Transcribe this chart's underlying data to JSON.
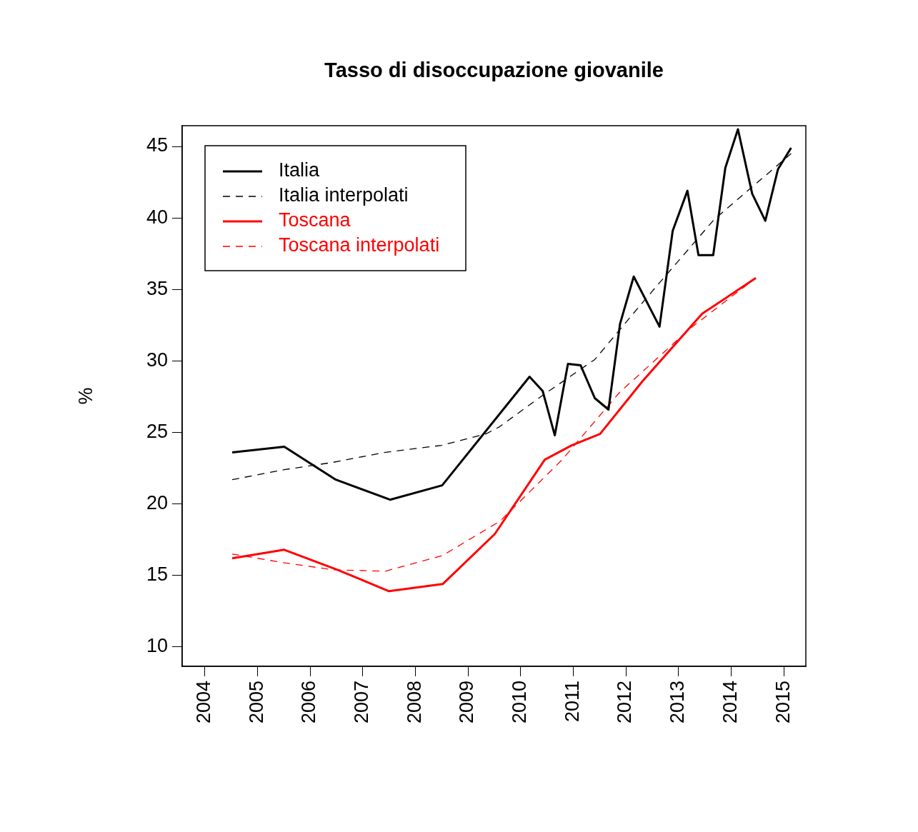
{
  "chart_data": {
    "type": "line",
    "title": "Tasso di disoccupazione giovanile",
    "ylabel": "%",
    "xlim": [
      2003.57,
      2015.42
    ],
    "xticks": [
      2004,
      2005,
      2006,
      2007,
      2008,
      2009,
      2010,
      2011,
      2012,
      2013,
      2014,
      2015
    ],
    "ylim": [
      8.65,
      46.45
    ],
    "yticks": [
      10,
      15,
      20,
      25,
      30,
      35,
      40,
      45
    ],
    "grid": false,
    "legend": "top left",
    "marker": "none",
    "series": [
      {
        "name": "Italia",
        "color": "#000000",
        "line_style": "solid",
        "x": [
          2004.52,
          2005.51,
          2006.49,
          2007.52,
          2008.51,
          2010.17,
          2010.42,
          2010.65,
          2010.9,
          2011.14,
          2011.41,
          2011.67,
          2011.89,
          2012.15,
          2012.64,
          2012.89,
          2013.17,
          2013.38,
          2013.66,
          2013.89,
          2014.13,
          2014.4,
          2014.65,
          2014.89,
          2015.14
        ],
        "values": [
          23.6,
          24.0,
          21.7,
          20.3,
          21.3,
          28.9,
          27.9,
          24.8,
          29.8,
          29.7,
          27.4,
          26.6,
          32.6,
          35.9,
          32.4,
          39.1,
          41.9,
          37.4,
          37.4,
          43.5,
          46.2,
          41.7,
          39.8,
          43.4,
          44.9
        ]
      },
      {
        "name": "Italia interpolati",
        "color": "#000000",
        "line_style": "dashed",
        "x": [
          2004.52,
          2005.51,
          2006.42,
          2007.41,
          2008.5,
          2009.34,
          2009.6,
          2010.42,
          2011.41,
          2012.32,
          2013.68,
          2014.95,
          2015.14
        ],
        "values": [
          21.7,
          22.4,
          22.9,
          23.6,
          24.1,
          24.9,
          25.4,
          27.6,
          30.1,
          34.1,
          39.9,
          43.9,
          44.5
        ]
      },
      {
        "name": "Toscana",
        "color": "#ff0000",
        "line_style": "solid",
        "x": [
          2004.52,
          2005.51,
          2006.52,
          2007.5,
          2008.52,
          2009.51,
          2010.46,
          2010.97,
          2011.51,
          2012.32,
          2013.45,
          2014.47
        ],
        "values": [
          16.2,
          16.8,
          15.4,
          13.9,
          14.4,
          17.9,
          23.1,
          24.1,
          24.9,
          28.6,
          33.3,
          35.8
        ]
      },
      {
        "name": "Toscana interpolati",
        "color": "#ff0000",
        "line_style": "dashed",
        "x": [
          2004.52,
          2005.49,
          2006.44,
          2007.43,
          2008.52,
          2009.61,
          2010.79,
          2011.88,
          2013.23,
          2014.47
        ],
        "values": [
          16.5,
          15.9,
          15.4,
          15.3,
          16.4,
          18.8,
          23.1,
          27.8,
          32.3,
          35.8
        ]
      }
    ]
  }
}
